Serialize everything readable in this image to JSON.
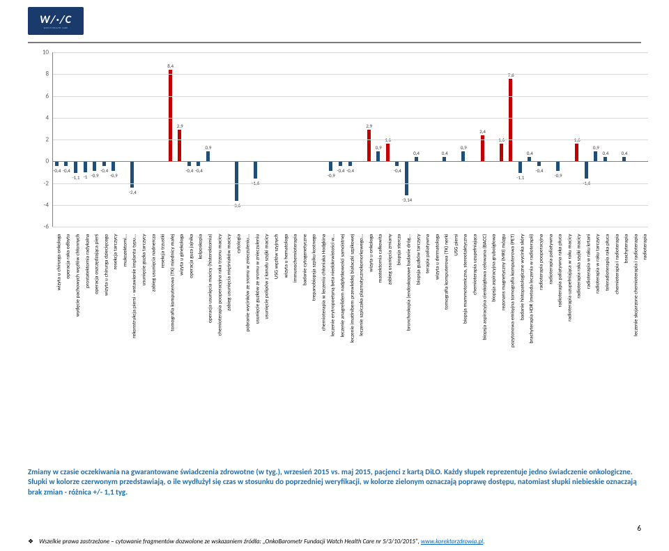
{
  "logo": {
    "main": "W/·/C",
    "sub": "WATCH HEALTH CARE"
  },
  "chart": {
    "type": "bar",
    "ymin": -6,
    "ymax": 10,
    "ytick_step": 2,
    "grid_color": "#d9d9d9",
    "axis_color": "#808080",
    "tick_color": "#595959",
    "tick_fontsize": 9,
    "label_fontsize": 7.5,
    "value_fontsize": 7,
    "background": "#ffffff",
    "categories": [
      "wizyta u chirurga onkologa",
      "operacja raka odbytu",
      "wydęcie pachowych węzłów chłonnych",
      "prostatektomia radykalna",
      "operacja oszczędzająca pierś",
      "wizyta u chirurga dziecięcego",
      "resekcja tarczycy",
      "mukozektomi...",
      "rekonstrukcja piersi - wstawienie implantu typu...",
      "usunięcie guzka tarczycy",
      "zabieg usunięcia nadnercza",
      "resekcja trzustki",
      "tomografia komputerowa (TK) miednicy małej",
      "wizyta u ginekologa",
      "operacja guza jajnika",
      "kolposkopia",
      "operacja usunięcia macicy (histerektomia)",
      "chemioterapia pooperacyjna raka trzonu macicy",
      "zabieg usunięcia mięśniaków macicy",
      "cytologia",
      "pobranie wycinków ze sromu w znieczuleniu...",
      "usunięcie guzków ze sromu w znieczuleniu",
      "usunięcie polipów z kanału szyjki macicy",
      "USG węzłów szyjnych",
      "wizyta u hematologa",
      "immunochemioterapia",
      "badanie cytogenetyczne",
      "trepanobiopsja szpiku kostnego",
      "chemioterapia w leczeniu chłoniaka Hodgkina",
      "leczenie erytropoetyną beta niedokrwistości w...",
      "leczenie anagrelidem nadpłytkowości samoistnej",
      "leczenie imatinibem przewlekłej białaczki szpikowej",
      "leczenie szpiczaka plazmatycznokomorkowego...",
      "wizyta u onkologa",
      "mastektomia całkowita",
      "zabieg usunięcia zmiany",
      "biopsja stercza",
      "bronchoskopia (endoskopowe badanie dróg...",
      "biopsja guzków tarczycy",
      "terapia paliatywna",
      "wizyta u dermatologa",
      "tomografia komputerowa (TK) nerki",
      "USG piersi",
      "biopsja mammotomiczna, stereotaktyczna",
      "chemioterapia uzupełniająca",
      "biopsja aspiracyjna cienkoigłowa celowana (BACC)",
      "biopsja aspiracyjna gruboigłowa",
      "rezonans magnetyczny (MRI) mózgu",
      "pozytonowa emisyjna tomografia komputerowa (PET)",
      "badanie histopatologiczne wycinka skóry",
      "brachyterapia HDR (metoda leczenia w radioterapii)",
      "radioterapia pooperacyjna",
      "radioterapia paliatywna",
      "radioterapia paliatywna raka płuca",
      "radioterapia uzupełniająca w raku macicy",
      "radioterapia raka szyjki macicy",
      "radioterapia w raku krtani",
      "radioterapia w raku tarczycy",
      "teleradioterapia raka płuca",
      "chemioterapia i radioterapia",
      "brachyterapia",
      "leczenie skojarzone chemioterapia i radioterapia",
      "radioterapia"
    ],
    "values": [
      -0.4,
      -0.4,
      -1.1,
      -1.0,
      -0.9,
      -0.4,
      -0.9,
      0,
      -2.4,
      0,
      0,
      0,
      8.4,
      2.9,
      -0.4,
      -0.4,
      0.9,
      0,
      0,
      -3.6,
      0,
      -1.6,
      0,
      0,
      0,
      0,
      0,
      0,
      0,
      -0.9,
      -0.4,
      -0.4,
      0,
      2.9,
      0.9,
      1.6,
      -0.4,
      -3.14,
      0.4,
      0,
      0,
      0.4,
      0,
      0.9,
      0,
      2.4,
      0,
      1.6,
      7.6,
      -1.1,
      0.4,
      -0.4,
      0,
      -0.9,
      0,
      1.6,
      -1.6,
      0.9,
      0.4,
      0,
      0.4,
      0,
      0
    ],
    "colors": {
      "pos": "#c00000",
      "neg": "#1f4e79",
      "neutral": "#548235"
    }
  },
  "caption": {
    "line1": "Zmiany w czasie oczekiwania na gwarantowane świadczenia zdrowotne (w tyg.), wrzesień 2015 vs. maj 2015, pacjenci z kartą DiLO. Każdy słupek reprezentuje jedno świadczenie onkologiczne. Słupki w kolorze czerwonym przedstawiają, o ile wydłużył się czas w stosunku do poprzedniej weryfikacji, w kolorze zielonym oznaczają poprawę dostępu, natomiast słupki niebieskie oznaczają brak zmian - różnica +/- 1,1 tyg."
  },
  "footer": {
    "text_pre": "Wszelkie prawa zastrzeżone – cytowanie fragmentów dozwolone ze wskazaniem źródła: „OnkoBarometr Fundacji Watch Health Care nr 5/3/10/2015\", ",
    "link": "www.korektorzdrowia.pl",
    "text_post": "."
  },
  "page_number": "6"
}
